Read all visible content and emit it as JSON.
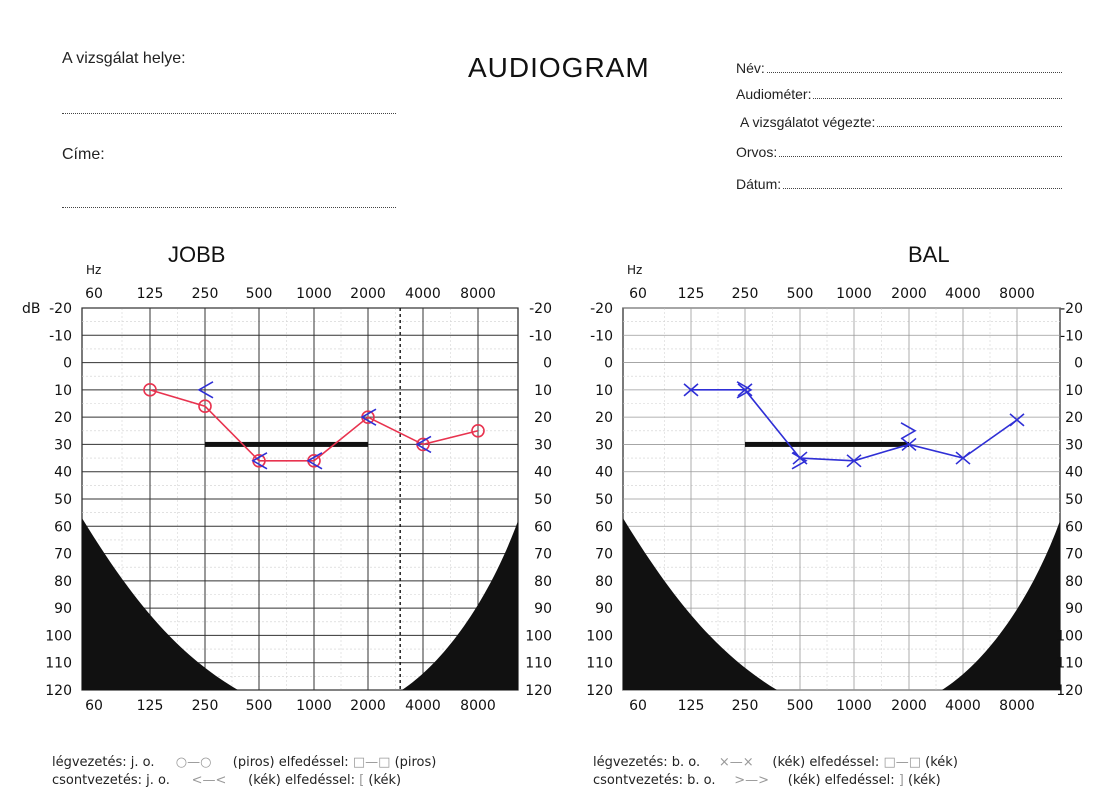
{
  "header": {
    "place_label": "A vizsgálat helye:",
    "address_label": "Címe:",
    "title": "AUDIOGRAM",
    "fields": [
      {
        "label": "Név:"
      },
      {
        "label": "Audiométer:"
      },
      {
        "label": "A vizsgálatot végezte:"
      },
      {
        "label": "Orvos:"
      },
      {
        "label": "Dátum:"
      }
    ]
  },
  "axis_text": {
    "hz": "Hz",
    "db": "dB"
  },
  "chart_data": [
    {
      "type": "line",
      "title": "JOBB",
      "x": [
        "60",
        "125",
        "250",
        "500",
        "1000",
        "2000",
        "4000",
        "8000"
      ],
      "x_unit": "Hz",
      "y_unit": "dB",
      "ylim": [
        -20,
        120
      ],
      "y_ticks": [
        "-20",
        "-10",
        "0",
        "10",
        "20",
        "30",
        "40",
        "50",
        "60",
        "70",
        "80",
        "90",
        "100",
        "110",
        "120"
      ],
      "y_inverted": true,
      "grid": true,
      "dashed_line_x": 3000,
      "mask_band": {
        "x_from": "250",
        "x_to": "2000",
        "y": 30
      },
      "series": [
        {
          "kind": "air",
          "color": "#e8334f",
          "points": [
            [
              "125",
              10
            ],
            [
              "250",
              16
            ],
            [
              "500",
              36
            ],
            [
              "1000",
              36
            ],
            [
              "2000",
              20
            ],
            [
              "4000",
              30
            ],
            [
              "8000",
              25
            ]
          ]
        },
        {
          "kind": "bone",
          "color": "#2f2fd6",
          "points": [
            [
              "250",
              10
            ],
            [
              "500",
              36
            ],
            [
              "1000",
              36
            ],
            [
              "2000",
              20
            ],
            [
              "4000",
              30
            ]
          ]
        }
      ]
    },
    {
      "type": "line",
      "title": "BAL",
      "x": [
        "60",
        "125",
        "250",
        "500",
        "1000",
        "2000",
        "4000",
        "8000"
      ],
      "x_unit": "Hz",
      "y_unit": "dB",
      "ylim": [
        -20,
        120
      ],
      "y_ticks": [
        "-20",
        "-10",
        "0",
        "10",
        "20",
        "30",
        "40",
        "50",
        "60",
        "70",
        "80",
        "90",
        "100",
        "110",
        "120"
      ],
      "y_inverted": true,
      "grid": true,
      "mask_band": {
        "x_from": "250",
        "x_to": "2000",
        "y": 30
      },
      "series": [
        {
          "kind": "air",
          "color": "#2f2fd6",
          "points": [
            [
              "125",
              10
            ],
            [
              "250",
              10
            ],
            [
              "500",
              35
            ],
            [
              "1000",
              36
            ],
            [
              "2000",
              30
            ],
            [
              "4000",
              35
            ],
            [
              "8000",
              21
            ]
          ]
        },
        {
          "kind": "bone",
          "color": "#2f2fd6",
          "points": [
            [
              "250",
              10
            ],
            [
              "500",
              36
            ],
            [
              "2000",
              25
            ]
          ]
        }
      ]
    }
  ],
  "legend": {
    "right": {
      "air_label": "légvezetés:",
      "ear": "j. o.",
      "color": "(piros)",
      "mask_label": "elfedéssel:",
      "mask_color": "(piros)",
      "bone_label": "csontvezetés:",
      "bone_ear": "j. o.",
      "bone_color": "(kék)",
      "bone_mask_label": "elfedéssel:",
      "bone_mask_color": "(kék)"
    },
    "left": {
      "air_label": "légvezetés:",
      "ear": "b. o.",
      "color": "(kék)",
      "mask_label": "elfedéssel:",
      "mask_color": "(kék)",
      "bone_label": "csontvezetés:",
      "bone_ear": "b. o.",
      "bone_color": "(kék)",
      "bone_mask_label": "elfedéssel:",
      "bone_mask_color": "(kék)"
    }
  }
}
